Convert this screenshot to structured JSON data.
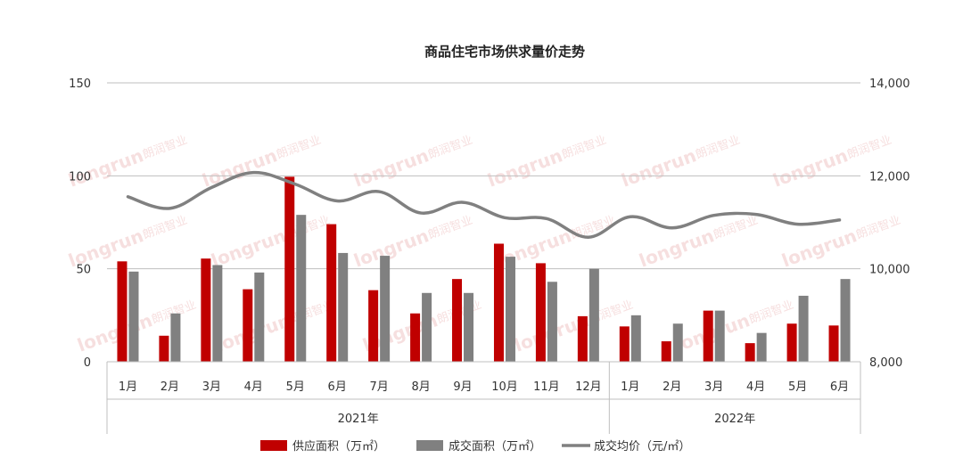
{
  "chart_data": {
    "type": "bar",
    "title": "商品住宅市场供求量价走势",
    "categories": [
      "1月",
      "2月",
      "3月",
      "4月",
      "5月",
      "6月",
      "7月",
      "8月",
      "9月",
      "10月",
      "11月",
      "12月",
      "1月",
      "2月",
      "3月",
      "4月",
      "5月",
      "6月"
    ],
    "groups": [
      {
        "label": "2021年",
        "count": 12
      },
      {
        "label": "2022年",
        "count": 6
      }
    ],
    "series": [
      {
        "name": "供应面积（万㎡）",
        "kind": "bar",
        "axis": "left",
        "color": "#c00000",
        "values": [
          54,
          14,
          55.5,
          39,
          99.5,
          74,
          38.5,
          26,
          44.5,
          63.5,
          53,
          24.5,
          19,
          11,
          27.5,
          10,
          20.5,
          19.5
        ]
      },
      {
        "name": "成交面积（万㎡）",
        "kind": "bar",
        "axis": "left",
        "color": "#808080",
        "values": [
          48.5,
          26,
          52,
          48,
          79,
          58.5,
          57,
          37,
          37,
          56.5,
          43,
          50,
          25,
          20.5,
          27.5,
          15.5,
          35.5,
          44.5
        ]
      },
      {
        "name": "成交均价（元/㎡）",
        "kind": "line",
        "axis": "right",
        "color": "#808080",
        "values": [
          11550,
          11300,
          11750,
          12070,
          11820,
          11460,
          11660,
          11200,
          11430,
          11100,
          11080,
          10680,
          11120,
          10880,
          11150,
          11170,
          10960,
          11050
        ]
      }
    ],
    "y_left": {
      "min": 0,
      "max": 150,
      "ticks": [
        0,
        50,
        100,
        150
      ]
    },
    "y_right": {
      "min": 8000,
      "max": 14000,
      "ticks": [
        "8,000",
        "10,000",
        "12,000",
        "14,000"
      ],
      "tick_values": [
        8000,
        10000,
        12000,
        14000
      ]
    },
    "grid": true,
    "legend_position": "bottom"
  },
  "watermark": {
    "text": "longrun",
    "sub": "朗润智业"
  }
}
